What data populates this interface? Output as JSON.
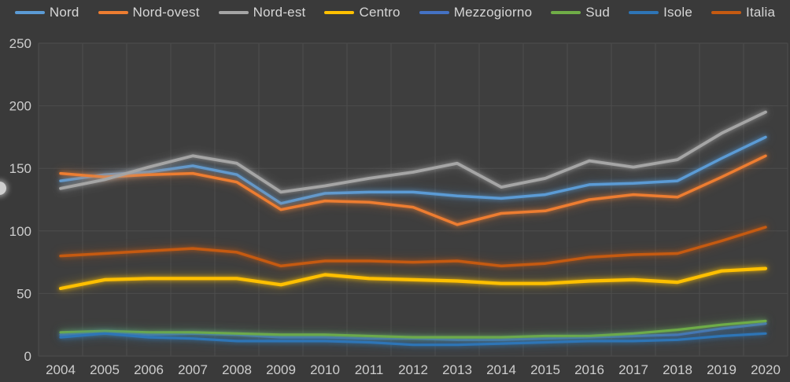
{
  "page": {
    "background_color": "#3a3a3a",
    "plot_background_color": "#3e3e3e",
    "grid_color": "#4d4d4d",
    "axis_text_color": "#cdcdcd",
    "legend_text_color": "#d6d6d6"
  },
  "legend": {
    "position": "top",
    "items": [
      {
        "label": "Nord",
        "color": "#5B9BD5"
      },
      {
        "label": "Nord-ovest",
        "color": "#ED7D31"
      },
      {
        "label": "Nord-est",
        "color": "#A5A5A5"
      },
      {
        "label": "Centro",
        "color": "#FFC000"
      },
      {
        "label": "Mezzogiorno",
        "color": "#4472C4"
      },
      {
        "label": "Sud",
        "color": "#70AD47"
      },
      {
        "label": "Isole",
        "color": "#2E75B6"
      },
      {
        "label": "Italia",
        "color": "#C55A11"
      }
    ]
  },
  "chart_data": {
    "type": "line",
    "title": "",
    "xlabel": "",
    "ylabel": "",
    "ylim": [
      0,
      250
    ],
    "y_ticks": [
      0,
      50,
      100,
      150,
      200,
      250
    ],
    "grid": true,
    "legend_position": "top",
    "categories": [
      2004,
      2005,
      2006,
      2007,
      2008,
      2009,
      2010,
      2011,
      2012,
      2013,
      2014,
      2015,
      2016,
      2017,
      2018,
      2019,
      2020
    ],
    "series": [
      {
        "name": "Nord",
        "color": "#5B9BD5",
        "width": 3.5,
        "values": [
          140,
          145,
          147,
          152,
          145,
          122,
          130,
          131,
          131,
          128,
          126,
          129,
          137,
          138,
          140,
          158,
          175
        ]
      },
      {
        "name": "Nord-ovest",
        "color": "#ED7D31",
        "width": 3.5,
        "values": [
          146,
          143,
          145,
          146,
          139,
          117,
          124,
          123,
          119,
          105,
          114,
          116,
          125,
          129,
          127,
          143,
          160
        ]
      },
      {
        "name": "Nord-est",
        "color": "#A5A5A5",
        "width": 3.8,
        "values": [
          134,
          141,
          151,
          160,
          154,
          131,
          136,
          142,
          147,
          154,
          135,
          142,
          156,
          151,
          157,
          178,
          195
        ]
      },
      {
        "name": "Centro",
        "color": "#FFC000",
        "width": 4.2,
        "values": [
          54,
          61,
          62,
          62,
          62,
          57,
          65,
          62,
          61,
          60,
          58,
          58,
          60,
          61,
          59,
          68,
          70
        ]
      },
      {
        "name": "Mezzogiorno",
        "color": "#4472C4",
        "width": 3.2,
        "values": [
          17,
          19,
          17,
          18,
          17,
          15,
          15,
          14,
          14,
          13,
          13,
          14,
          15,
          16,
          17,
          22,
          26
        ]
      },
      {
        "name": "Sud",
        "color": "#70AD47",
        "width": 3.2,
        "values": [
          19,
          20,
          19,
          19,
          18,
          17,
          17,
          16,
          15,
          15,
          15,
          16,
          16,
          18,
          21,
          25,
          28
        ]
      },
      {
        "name": "Isole",
        "color": "#2E75B6",
        "width": 3.2,
        "values": [
          15,
          18,
          15,
          14,
          12,
          12,
          12,
          11,
          9,
          9,
          10,
          11,
          12,
          12,
          13,
          16,
          18
        ]
      },
      {
        "name": "Italia",
        "color": "#C55A11",
        "width": 3.5,
        "values": [
          80,
          82,
          84,
          86,
          83,
          72,
          76,
          76,
          75,
          76,
          72,
          74,
          79,
          81,
          82,
          92,
          103
        ]
      }
    ]
  }
}
